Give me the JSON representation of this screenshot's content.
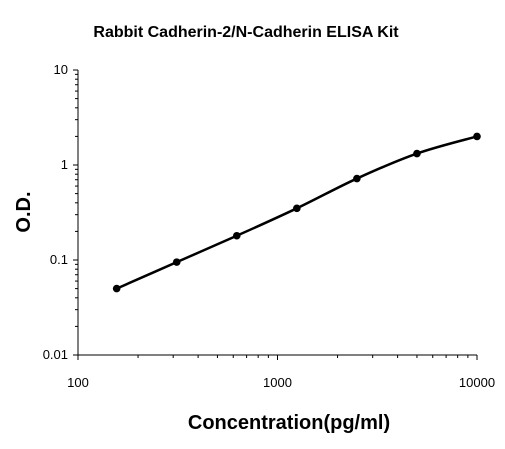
{
  "chart_data": {
    "type": "line",
    "title": "Rabbit Cadherin-2/N-Cadherin  ELISA Kit",
    "xlabel": "Concentration(pg/ml)",
    "ylabel": "O.D.",
    "xscale": "log",
    "yscale": "log",
    "xlim": [
      100,
      10000
    ],
    "ylim": [
      0.01,
      10
    ],
    "xticks": [
      100,
      1000,
      10000
    ],
    "xtick_labels": [
      "100",
      "1000",
      "10000"
    ],
    "yticks": [
      0.01,
      0.1,
      1,
      10
    ],
    "ytick_labels": [
      "0.01",
      "0.1",
      "1",
      "10"
    ],
    "grid": false,
    "legend": "none",
    "series": [
      {
        "x": [
          156.25,
          312.5,
          625,
          1250,
          2500,
          5000,
          10000
        ],
        "y": [
          0.05,
          0.095,
          0.18,
          0.35,
          0.72,
          1.32,
          2.0
        ],
        "color": "#000000",
        "marker": "circle"
      }
    ]
  }
}
